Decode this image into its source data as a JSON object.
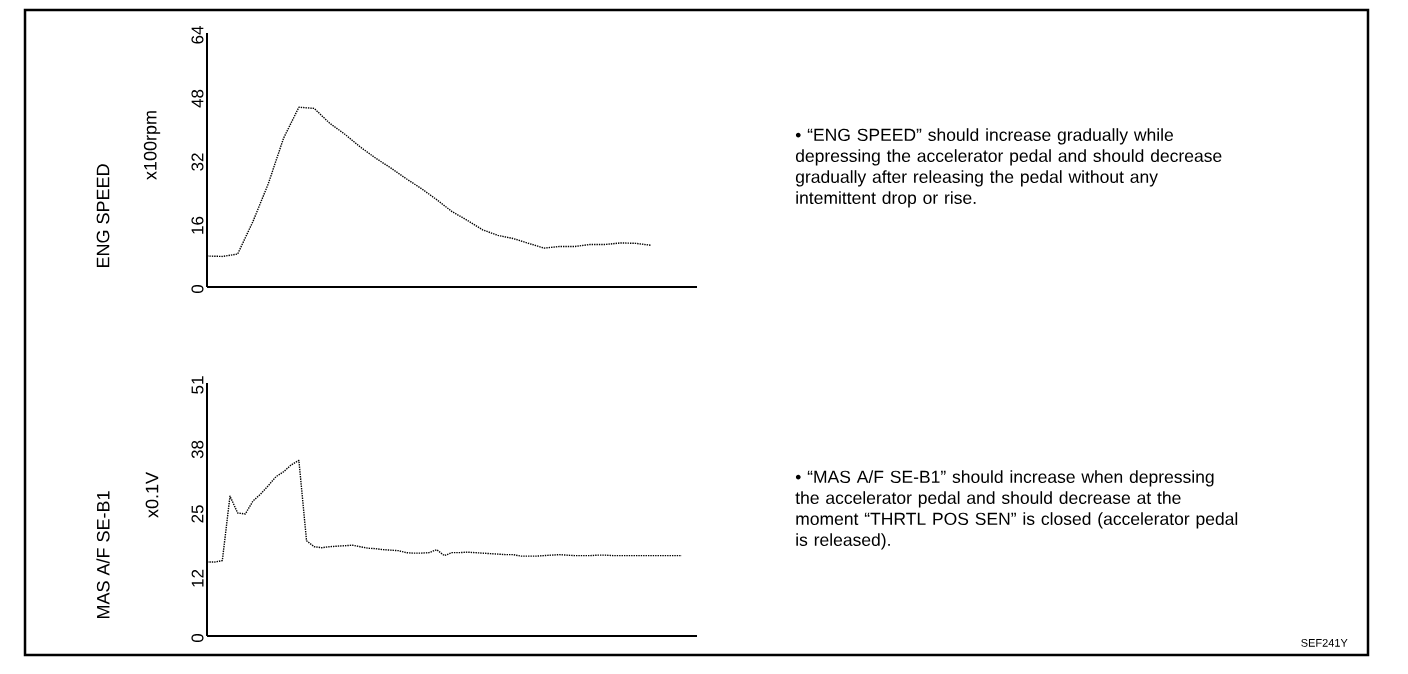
{
  "chart_data": [
    {
      "type": "line",
      "ylabel": "ENG SPEED",
      "color": "#000000",
      "line_style": "dotted",
      "tick_labels": "y",
      "annotations": [
        "x100rpm",
        "• “ENG SPEED” should increase gradually while depressing the accelerator pedal and should decrease gradually after releasing the pedal without any intemittent drop or rise."
      ],
      "categories": [
        null,
        null,
        null,
        null,
        null,
        null,
        null,
        null,
        null,
        null,
        null,
        null,
        null,
        null,
        null,
        null,
        null,
        null,
        null,
        null,
        null,
        null,
        null,
        null,
        null,
        null,
        null,
        null,
        null,
        null,
        null,
        null,
        null
      ],
      "values": [
        7.8,
        7.7,
        8.3,
        16.5,
        26,
        37.5,
        45.3,
        45,
        41.3,
        38.5,
        35.3,
        32.5,
        30,
        27.3,
        24.8,
        22,
        19,
        16.8,
        14.4,
        13,
        12.2,
        11,
        9.8,
        10.2,
        10.2,
        10.7,
        10.7,
        11.1,
        11,
        10.5,
        null,
        null,
        null
      ],
      "ylim": [
        0,
        64
      ],
      "yticks": [
        0,
        16,
        32,
        48,
        64
      ]
    },
    {
      "type": "line",
      "ylabel": "MAS A/F SE-B1",
      "color": "#000000",
      "line_style": "dotted",
      "tick_labels": "y",
      "annotations": [
        "x0.1V",
        "• “MAS A/F SE-B1” should increase when depressing the accelerator pedal and should decrease at the moment “THRTL POS SEN” is closed (accelerator pedal is released).",
        "SEF241Y"
      ],
      "categories": [
        null,
        null,
        null,
        null,
        null,
        null,
        null,
        null,
        null,
        null,
        null,
        null,
        null,
        null,
        null,
        null,
        null,
        null,
        null,
        null,
        null,
        null,
        null,
        null,
        null,
        null,
        null,
        null,
        null,
        null,
        null,
        null,
        null,
        null,
        null,
        null,
        null,
        null,
        null,
        null,
        null,
        null,
        null,
        null,
        null,
        null,
        null,
        null,
        null,
        null,
        null,
        null,
        null,
        null,
        null,
        null,
        null,
        null,
        null,
        null,
        null,
        null,
        null,
        null,
        null
      ],
      "values": [
        14.9,
        14.9,
        15.2,
        28.2,
        24.8,
        24.6,
        27.2,
        28.6,
        30.3,
        32.1,
        33.1,
        34.5,
        35.4,
        19.2,
        18.0,
        17.8,
        18.0,
        18.1,
        18.2,
        18.3,
        18.0,
        17.7,
        17.6,
        17.4,
        17.3,
        17.2,
        16.8,
        16.7,
        16.7,
        16.8,
        17.4,
        16.2,
        16.8,
        16.8,
        16.9,
        16.8,
        16.7,
        16.6,
        16.5,
        16.4,
        16.4,
        16.1,
        16.1,
        16.1,
        16.2,
        16.3,
        16.4,
        16.3,
        16.2,
        16.2,
        16.2,
        16.3,
        16.3,
        16.2,
        16.2,
        16.2,
        16.2,
        16.2,
        16.2,
        16.2,
        16.2,
        16.2,
        16.2,
        null,
        null
      ],
      "ylim": [
        0,
        51
      ],
      "yticks": [
        0,
        12,
        25,
        38,
        51
      ]
    }
  ]
}
